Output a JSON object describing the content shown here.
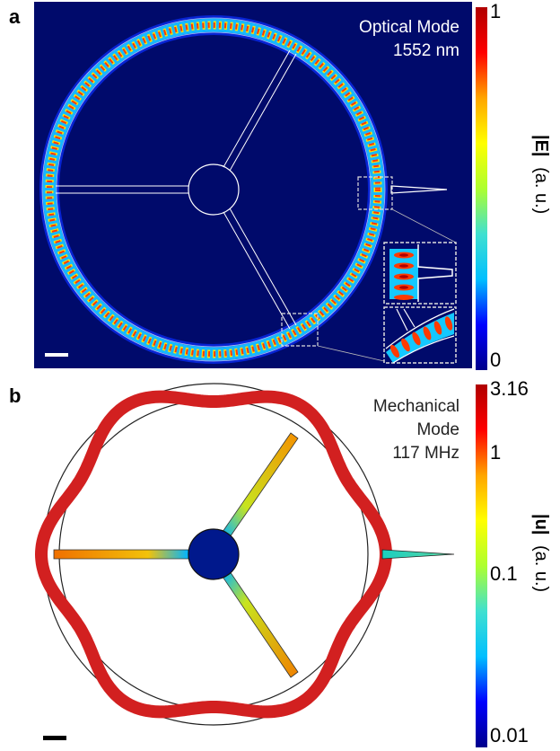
{
  "panel_a": {
    "letter": "a",
    "label_line1": "Optical Mode",
    "label_line2": "1552 nm",
    "colorbar": {
      "max": "1",
      "min": "0",
      "title_bold": "|E|",
      "title_unit": "(a. u.)",
      "colors": [
        "#00008b",
        "#0000ff",
        "#00bfff",
        "#40e0d0",
        "#adff2f",
        "#ffff00",
        "#ffa500",
        "#ff0000",
        "#b00000"
      ]
    }
  },
  "panel_b": {
    "letter": "b",
    "label_line1": "Mechanical",
    "label_line2": "Mode",
    "label_line3": "117 MHz",
    "colorbar": {
      "tick_top": "3.16",
      "tick_1": "1",
      "tick_01": "0.1",
      "tick_bottom": "0.01",
      "title_bold": "|u|",
      "title_unit": "(a. u.)",
      "scale": "log",
      "colors": [
        "#00008b",
        "#0000ff",
        "#00bfff",
        "#40e0d0",
        "#adff2f",
        "#ffff00",
        "#ffa500",
        "#ff0000",
        "#b00000"
      ]
    }
  }
}
